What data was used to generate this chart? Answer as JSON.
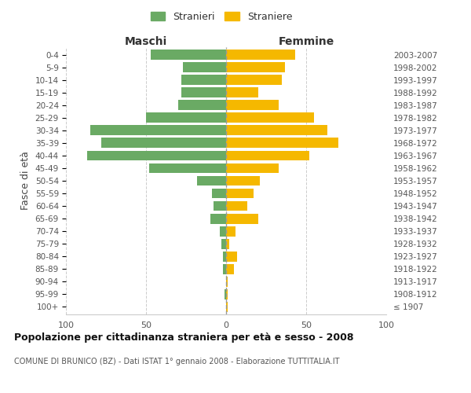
{
  "age_groups": [
    "100+",
    "95-99",
    "90-94",
    "85-89",
    "80-84",
    "75-79",
    "70-74",
    "65-69",
    "60-64",
    "55-59",
    "50-54",
    "45-49",
    "40-44",
    "35-39",
    "30-34",
    "25-29",
    "20-24",
    "15-19",
    "10-14",
    "5-9",
    "0-4"
  ],
  "birth_years": [
    "≤ 1907",
    "1908-1912",
    "1913-1917",
    "1918-1922",
    "1923-1927",
    "1928-1932",
    "1933-1937",
    "1938-1942",
    "1943-1947",
    "1948-1952",
    "1953-1957",
    "1958-1962",
    "1963-1967",
    "1968-1972",
    "1973-1977",
    "1978-1982",
    "1983-1987",
    "1988-1992",
    "1993-1997",
    "1998-2002",
    "2003-2007"
  ],
  "maschi": [
    0,
    1,
    0,
    2,
    2,
    3,
    4,
    10,
    8,
    9,
    18,
    48,
    87,
    78,
    85,
    50,
    30,
    28,
    28,
    27,
    47
  ],
  "femmine": [
    1,
    1,
    1,
    5,
    7,
    2,
    6,
    20,
    13,
    17,
    21,
    33,
    52,
    70,
    63,
    55,
    33,
    20,
    35,
    37,
    43
  ],
  "color_maschi": "#6aaa64",
  "color_femmine": "#f5b800",
  "title": "Popolazione per cittadinanza straniera per età e sesso - 2008",
  "subtitle": "COMUNE DI BRUNICO (BZ) - Dati ISTAT 1° gennaio 2008 - Elaborazione TUTTITALIA.IT",
  "ylabel_left": "Fasce di età",
  "legend_maschi": "Stranieri",
  "legend_femmine": "Straniere",
  "header_left": "Maschi",
  "header_right": "Femmine",
  "xlim": 100,
  "background_color": "#ffffff",
  "grid_color": "#cccccc"
}
